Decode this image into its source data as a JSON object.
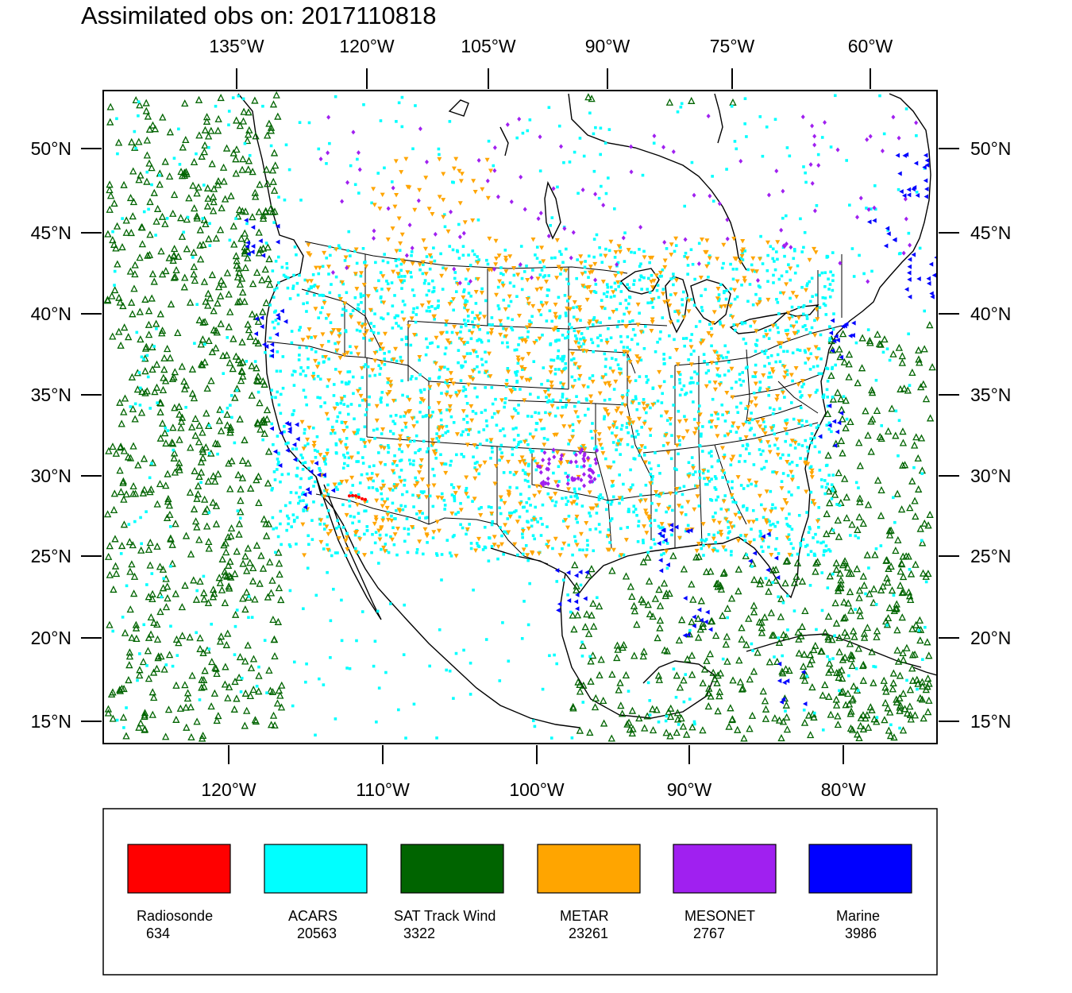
{
  "title": "Assimilated obs on: 2017110818",
  "top_axis": {
    "labels": [
      "135°W",
      "120°W",
      "105°W",
      "90°W",
      "75°W",
      "60°W"
    ]
  },
  "bottom_axis": {
    "labels": [
      "120°W",
      "110°W",
      "100°W",
      "90°W",
      "80°W"
    ]
  },
  "lat_axis": {
    "labels": [
      "50°N",
      "45°N",
      "40°N",
      "35°N",
      "30°N",
      "25°N",
      "20°N",
      "15°N"
    ]
  },
  "map": {
    "extent_lon": [
      -128,
      -74
    ],
    "extent_lat": [
      13.5,
      53.5
    ],
    "background": "#ffffff"
  },
  "legend": {
    "items": [
      {
        "name": "Radiosonde",
        "count": "634",
        "color": "#ff0000"
      },
      {
        "name": "ACARS",
        "count": "20563",
        "color": "#00ffff"
      },
      {
        "name": "SAT Track Wind",
        "count": "3322",
        "color": "#006400"
      },
      {
        "name": "METAR",
        "count": "23261",
        "color": "#ffa500"
      },
      {
        "name": "MESONET",
        "count": "2767",
        "color": "#a020f0"
      },
      {
        "name": "Marine",
        "count": "3986",
        "color": "#0000ff"
      }
    ]
  },
  "markers": {
    "SAT Track Wind": "open-triangle-up",
    "ACARS": "square-dot",
    "METAR": "filled-triangle-down",
    "MESONET": "diamond",
    "Marine": "filled-triangle-left",
    "Radiosonde": "dot"
  }
}
